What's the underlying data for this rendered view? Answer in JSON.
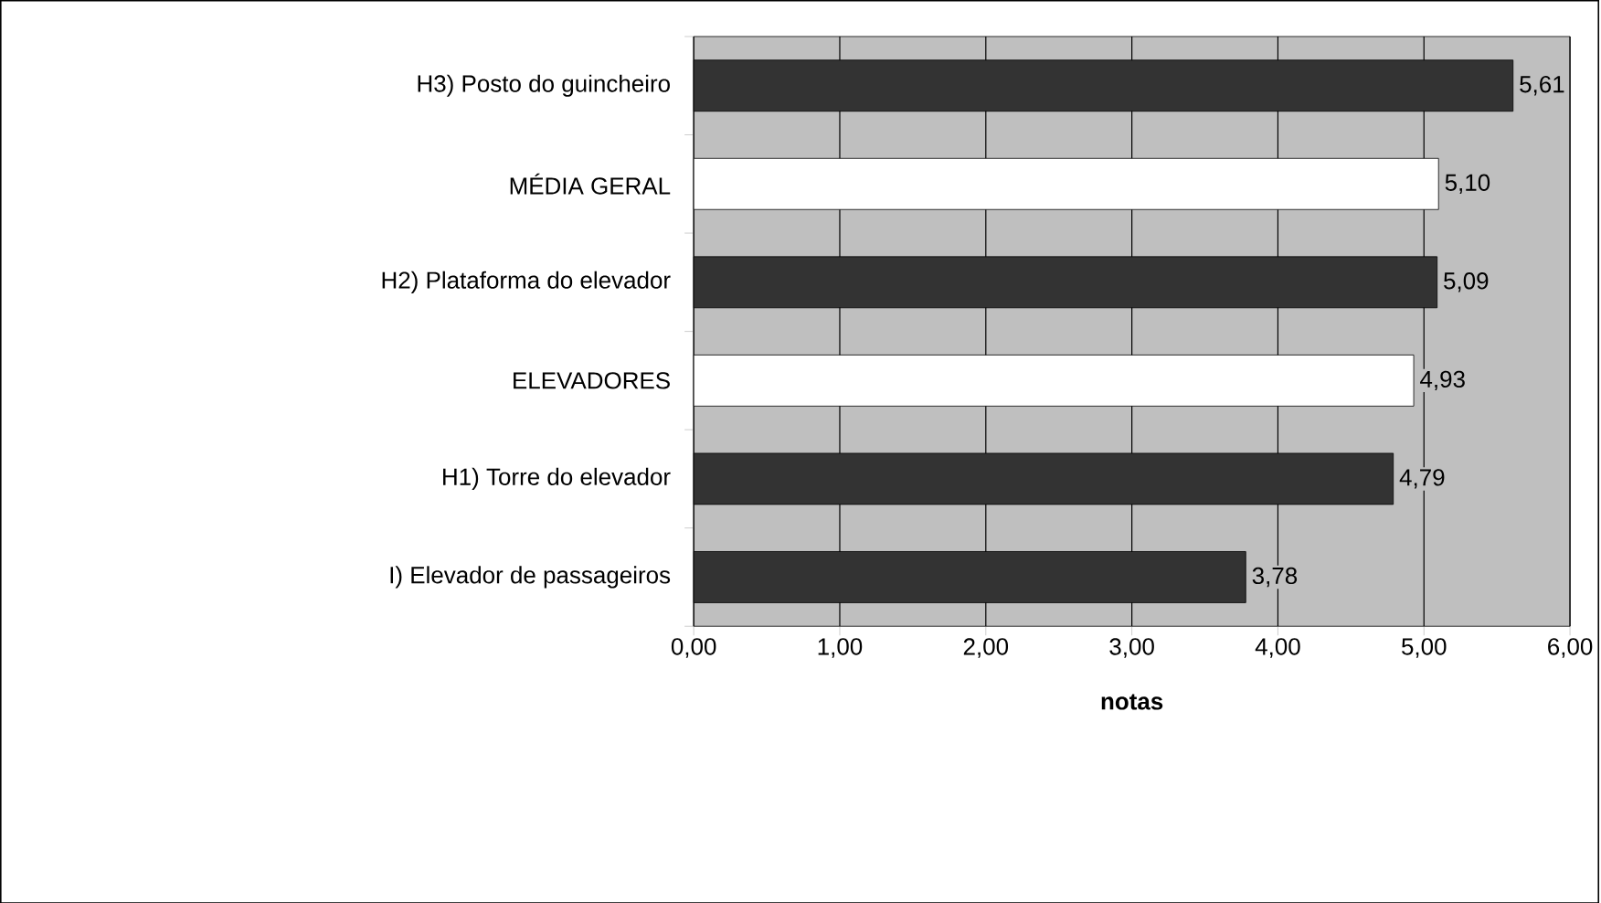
{
  "chart_data": {
    "type": "bar",
    "orientation": "horizontal",
    "xlabel": "notas",
    "categories": [
      "H3) Posto do guincheiro",
      "MÉDIA GERAL",
      "H2) Plataforma do elevador",
      "ELEVADORES",
      "H1) Torre do elevador",
      "I) Elevador de passageiros"
    ],
    "values": [
      5.61,
      5.1,
      5.09,
      4.93,
      4.79,
      3.78
    ],
    "colors": [
      "#333333",
      "#ffffff",
      "#333333",
      "#ffffff",
      "#333333",
      "#333333"
    ],
    "value_labels": [
      "5,61",
      "5,10",
      "5,09",
      "4,93",
      "4,79",
      "3,78"
    ],
    "xlim": [
      0,
      6
    ],
    "xticks": [
      {
        "value": 0,
        "label": "0,00"
      },
      {
        "value": 1,
        "label": "1,00"
      },
      {
        "value": 2,
        "label": "2,00"
      },
      {
        "value": 3,
        "label": "3,00"
      },
      {
        "value": 4,
        "label": "4,00"
      },
      {
        "value": 5,
        "label": "5,00"
      },
      {
        "value": 6,
        "label": "6,00"
      }
    ],
    "grid": "x"
  }
}
